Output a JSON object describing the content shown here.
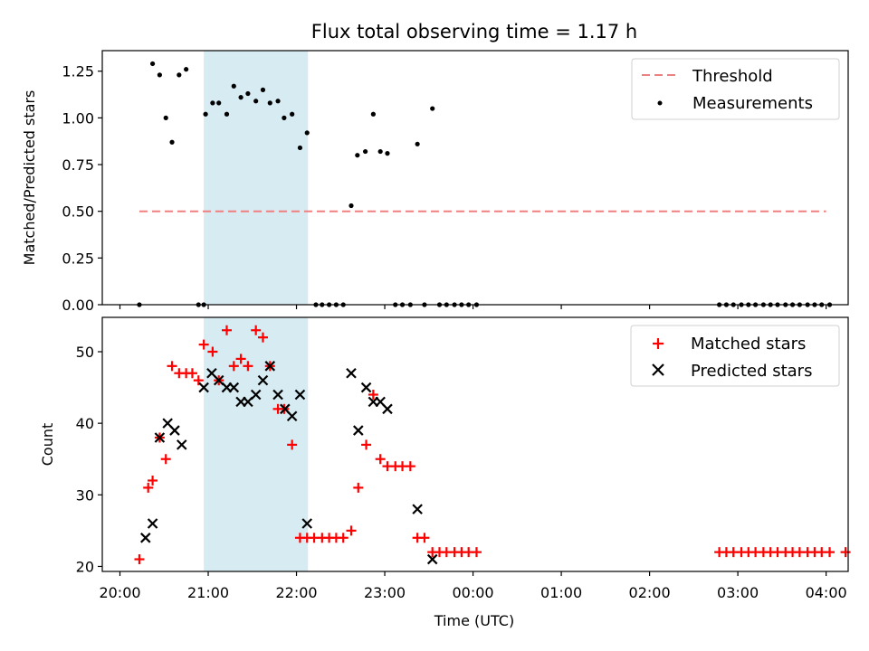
{
  "title": "Flux total observing time = 1.17 h",
  "chart_data": [
    {
      "type": "scatter",
      "ylabel": "Matched/Predicted stars",
      "ylim": [
        0,
        1.36
      ],
      "yticks": [
        "0.00",
        "0.25",
        "0.50",
        "0.75",
        "1.00",
        "1.25"
      ],
      "xlim": [
        -0.2,
        8.25
      ],
      "highlight_span": [
        0.95,
        2.13
      ],
      "legend": {
        "placement": "top-right",
        "threshold_label": "Threshold",
        "measurements_label": "Measurements"
      },
      "colors": {
        "threshold": "#f08080",
        "measurements": "#000000",
        "span": "#add8e6"
      },
      "threshold": {
        "x": [
          0.22,
          8.0
        ],
        "y": 0.5
      },
      "measurements": {
        "x": [
          0.22,
          0.37,
          0.45,
          0.52,
          0.59,
          0.67,
          0.75,
          0.89,
          0.95,
          0.97,
          1.05,
          1.12,
          1.21,
          1.29,
          1.37,
          1.45,
          1.54,
          1.62,
          1.7,
          1.79,
          1.86,
          1.95,
          2.04,
          2.12,
          2.22,
          2.29,
          2.37,
          2.45,
          2.53,
          2.62,
          2.69,
          2.78,
          2.87,
          2.95,
          3.03,
          3.12,
          3.2,
          3.29,
          3.37,
          3.45,
          3.54,
          3.62,
          3.7,
          3.79,
          3.87,
          3.95,
          4.04,
          6.79,
          6.87,
          6.95,
          7.04,
          7.12,
          7.2,
          7.29,
          7.37,
          7.45,
          7.54,
          7.62,
          7.7,
          7.79,
          7.87,
          7.95,
          8.04
        ],
        "y": [
          0,
          1.29,
          1.23,
          1.0,
          0.87,
          1.23,
          1.26,
          0,
          0,
          1.02,
          1.08,
          1.08,
          1.02,
          1.17,
          1.11,
          1.13,
          1.09,
          1.15,
          1.08,
          1.09,
          1.0,
          1.02,
          0.84,
          0.92,
          0,
          0,
          0,
          0,
          0,
          0.53,
          0.8,
          0.82,
          1.02,
          0.82,
          0.81,
          0,
          0,
          0,
          0.86,
          0,
          1.05,
          0,
          0,
          0,
          0,
          0,
          0,
          0,
          0,
          0,
          0,
          0,
          0,
          0,
          0,
          0,
          0,
          0,
          0,
          0,
          0,
          0,
          0
        ]
      }
    },
    {
      "type": "scatter",
      "xlabel": "Time (UTC)",
      "ylabel": "Count",
      "ylim": [
        19.3,
        54.8
      ],
      "yticks": [
        "20",
        "30",
        "40",
        "50"
      ],
      "xlim": [
        -0.2,
        8.25
      ],
      "xticks": [
        "20:00",
        "21:00",
        "22:00",
        "23:00",
        "00:00",
        "01:00",
        "02:00",
        "03:00",
        "04:00"
      ],
      "highlight_span": [
        0.95,
        2.13
      ],
      "legend": {
        "placement": "top-right",
        "matched_label": "Matched stars",
        "predicted_label": "Predicted stars"
      },
      "colors": {
        "matched": "#ff0000",
        "predicted": "#000000",
        "span": "#add8e6"
      },
      "matched": {
        "x": [
          0.22,
          0.32,
          0.37,
          0.45,
          0.52,
          0.59,
          0.67,
          0.75,
          0.82,
          0.89,
          0.95,
          1.05,
          1.12,
          1.21,
          1.29,
          1.37,
          1.45,
          1.54,
          1.62,
          1.7,
          1.79,
          1.86,
          1.95,
          2.04,
          2.12,
          2.2,
          2.29,
          2.37,
          2.45,
          2.53,
          2.62,
          2.7,
          2.79,
          2.87,
          2.95,
          3.03,
          3.12,
          3.2,
          3.29,
          3.37,
          3.45,
          3.54,
          3.62,
          3.7,
          3.79,
          3.87,
          3.95,
          4.04,
          6.79,
          6.87,
          6.95,
          7.04,
          7.12,
          7.2,
          7.29,
          7.37,
          7.45,
          7.54,
          7.62,
          7.7,
          7.79,
          7.87,
          7.95,
          8.04,
          8.22
        ],
        "y": [
          21,
          31,
          32,
          38,
          35,
          48,
          47,
          47,
          47,
          46,
          51,
          50,
          46,
          53,
          48,
          49,
          48,
          53,
          52,
          48,
          42,
          42,
          37,
          24,
          24,
          24,
          24,
          24,
          24,
          24,
          25,
          31,
          37,
          44,
          35,
          34,
          34,
          34,
          34,
          24,
          24,
          22,
          22,
          22,
          22,
          22,
          22,
          22,
          22,
          22,
          22,
          22,
          22,
          22,
          22,
          22,
          22,
          22,
          22,
          22,
          22,
          22,
          22,
          22,
          22
        ]
      },
      "predicted": {
        "x": [
          0.29,
          0.37,
          0.45,
          0.54,
          0.62,
          0.7,
          0.95,
          1.04,
          1.12,
          1.21,
          1.29,
          1.37,
          1.45,
          1.54,
          1.62,
          1.7,
          1.79,
          1.87,
          1.95,
          2.04,
          2.12,
          2.62,
          2.7,
          2.79,
          2.87,
          2.95,
          3.03,
          3.37,
          3.54
        ],
        "y": [
          24,
          26,
          38,
          40,
          39,
          37,
          45,
          47,
          46,
          45,
          45,
          43,
          43,
          44,
          46,
          48,
          44,
          42,
          41,
          44,
          26,
          47,
          39,
          45,
          43,
          43,
          42,
          28,
          21
        ]
      }
    }
  ]
}
